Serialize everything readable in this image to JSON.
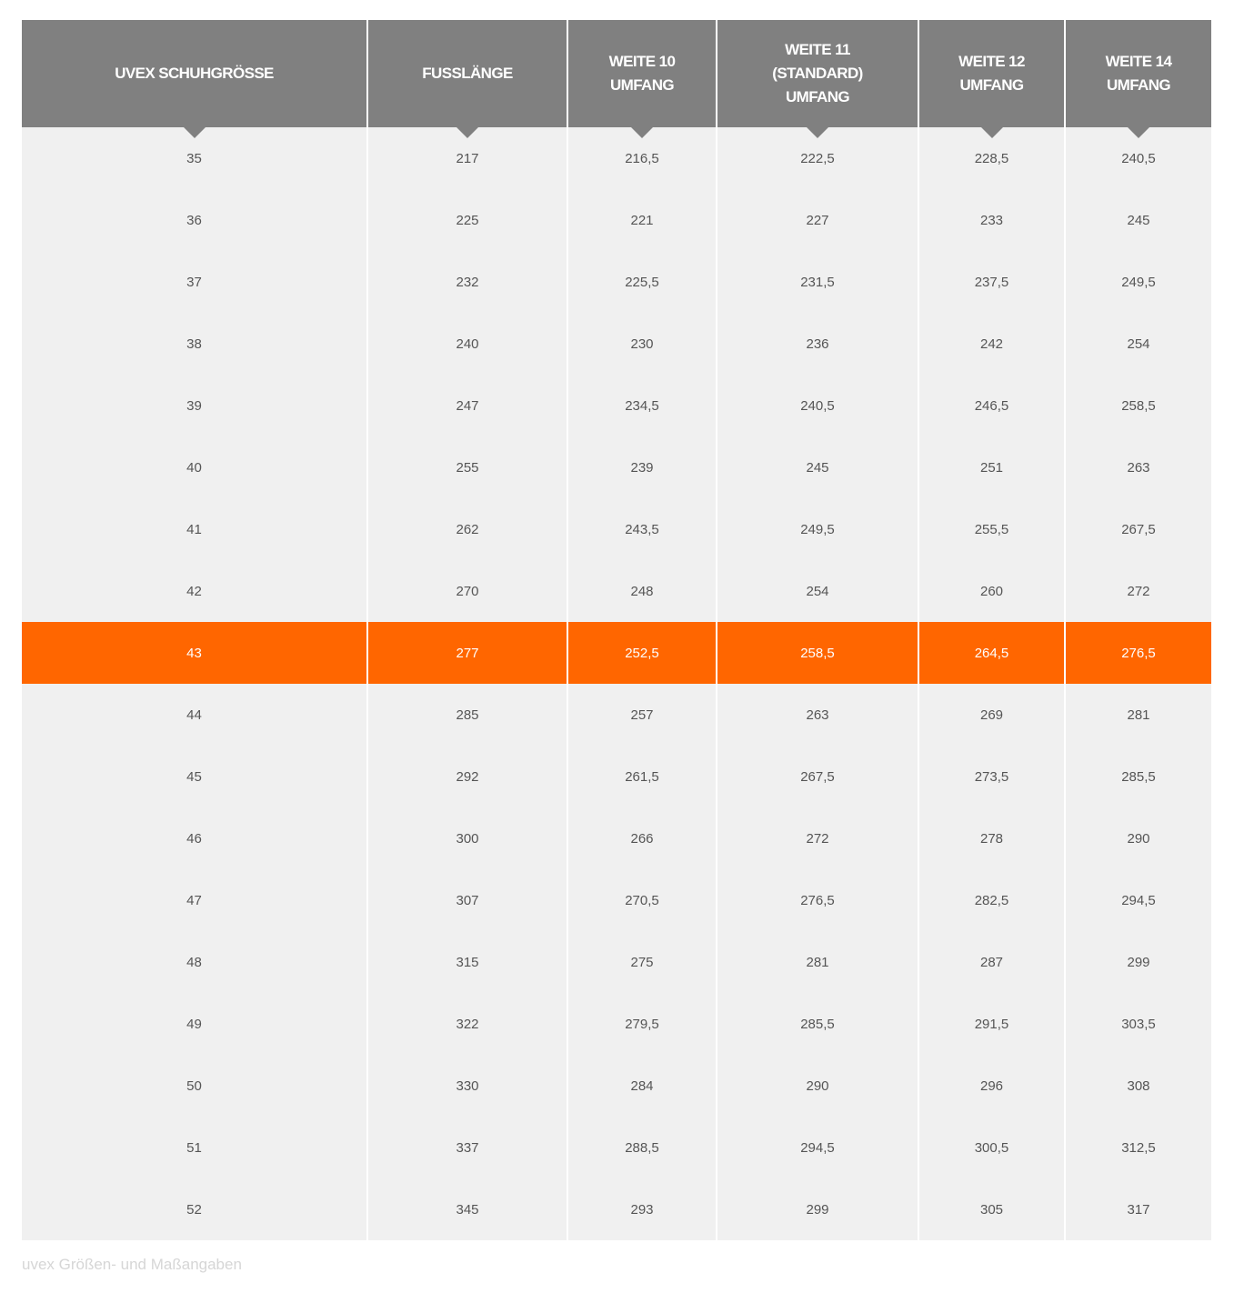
{
  "table": {
    "headers": [
      "UVEX SCHUHGRÖSSE",
      "FUSSLÄNGE",
      "WEITE 10\nUMFANG",
      "WEITE 11\n(STANDARD)\nUMFANG",
      "WEITE 12\nUMFANG",
      "WEITE 14\nUMFANG"
    ],
    "highlighted_row": "43",
    "highlight_color": "#ff6600",
    "header_color": "#808080",
    "rows": [
      [
        "35",
        "217",
        "216,5",
        "222,5",
        "228,5",
        "240,5"
      ],
      [
        "36",
        "225",
        "221",
        "227",
        "233",
        "245"
      ],
      [
        "37",
        "232",
        "225,5",
        "231,5",
        "237,5",
        "249,5"
      ],
      [
        "38",
        "240",
        "230",
        "236",
        "242",
        "254"
      ],
      [
        "39",
        "247",
        "234,5",
        "240,5",
        "246,5",
        "258,5"
      ],
      [
        "40",
        "255",
        "239",
        "245",
        "251",
        "263"
      ],
      [
        "41",
        "262",
        "243,5",
        "249,5",
        "255,5",
        "267,5"
      ],
      [
        "42",
        "270",
        "248",
        "254",
        "260",
        "272"
      ],
      [
        "43",
        "277",
        "252,5",
        "258,5",
        "264,5",
        "276,5"
      ],
      [
        "44",
        "285",
        "257",
        "263",
        "269",
        "281"
      ],
      [
        "45",
        "292",
        "261,5",
        "267,5",
        "273,5",
        "285,5"
      ],
      [
        "46",
        "300",
        "266",
        "272",
        "278",
        "290"
      ],
      [
        "47",
        "307",
        "270,5",
        "276,5",
        "282,5",
        "294,5"
      ],
      [
        "48",
        "315",
        "275",
        "281",
        "287",
        "299"
      ],
      [
        "49",
        "322",
        "279,5",
        "285,5",
        "291,5",
        "303,5"
      ],
      [
        "50",
        "330",
        "284",
        "290",
        "296",
        "308"
      ],
      [
        "51",
        "337",
        "288,5",
        "294,5",
        "300,5",
        "312,5"
      ],
      [
        "52",
        "345",
        "293",
        "299",
        "305",
        "317"
      ]
    ]
  },
  "caption": "uvex Größen- und Maßangaben"
}
